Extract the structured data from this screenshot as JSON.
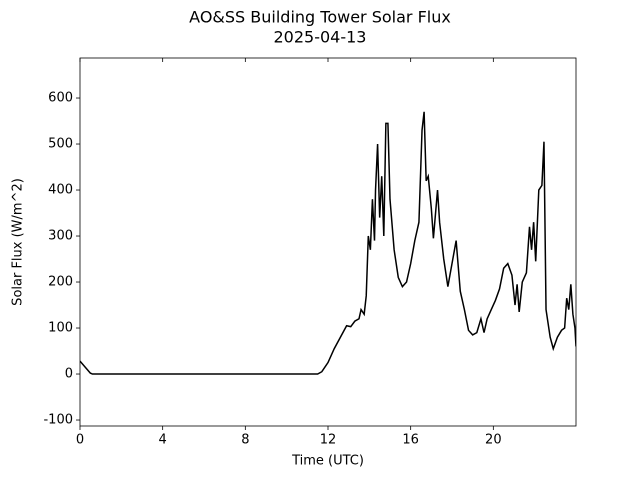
{
  "chart_data": {
    "type": "line",
    "title": "AO&SS Building Tower Solar Flux",
    "subtitle": "2025-04-13",
    "x_label": "Time (UTC)",
    "y_label": "Solar Flux (W/m^2)",
    "xlim": [
      0,
      24
    ],
    "xticks": [
      0,
      4,
      8,
      12,
      16,
      20
    ],
    "ylim": [
      -113,
      687
    ],
    "yticks": [
      -100,
      0,
      100,
      200,
      300,
      400,
      500,
      600
    ],
    "grid": false,
    "series": [
      {
        "name": "Solar Flux",
        "color": "#000000",
        "x": [
          0,
          0.25,
          0.5,
          0.6,
          11.5,
          11.7,
          12.0,
          12.3,
          12.6,
          12.9,
          13.1,
          13.3,
          13.5,
          13.6,
          13.75,
          13.85,
          13.95,
          14.05,
          14.15,
          14.25,
          14.3,
          14.4,
          14.5,
          14.6,
          14.7,
          14.8,
          14.9,
          15.0,
          15.2,
          15.4,
          15.6,
          15.8,
          16.0,
          16.2,
          16.4,
          16.55,
          16.65,
          16.75,
          16.85,
          17.0,
          17.1,
          17.3,
          17.4,
          17.6,
          17.8,
          18.0,
          18.2,
          18.4,
          18.6,
          18.8,
          19.0,
          19.2,
          19.4,
          19.55,
          19.7,
          19.9,
          20.1,
          20.3,
          20.5,
          20.7,
          20.9,
          21.05,
          21.15,
          21.25,
          21.4,
          21.6,
          21.75,
          21.85,
          21.95,
          22.05,
          22.2,
          22.35,
          22.45,
          22.55,
          22.75,
          22.9,
          23.1,
          23.3,
          23.45,
          23.55,
          23.65,
          23.75,
          23.85,
          23.95,
          24.0
        ],
        "values": [
          28,
          15,
          2,
          0,
          0,
          5,
          25,
          55,
          80,
          105,
          103,
          115,
          120,
          140,
          130,
          170,
          300,
          270,
          380,
          290,
          400,
          500,
          340,
          430,
          300,
          545,
          545,
          380,
          270,
          210,
          190,
          200,
          240,
          290,
          330,
          530,
          570,
          420,
          430,
          360,
          295,
          400,
          330,
          250,
          190,
          240,
          290,
          180,
          140,
          95,
          85,
          90,
          120,
          90,
          120,
          140,
          160,
          185,
          230,
          240,
          215,
          150,
          195,
          135,
          200,
          220,
          320,
          270,
          330,
          245,
          400,
          410,
          505,
          140,
          80,
          55,
          80,
          95,
          100,
          165,
          140,
          195,
          130,
          100,
          60
        ]
      }
    ]
  }
}
